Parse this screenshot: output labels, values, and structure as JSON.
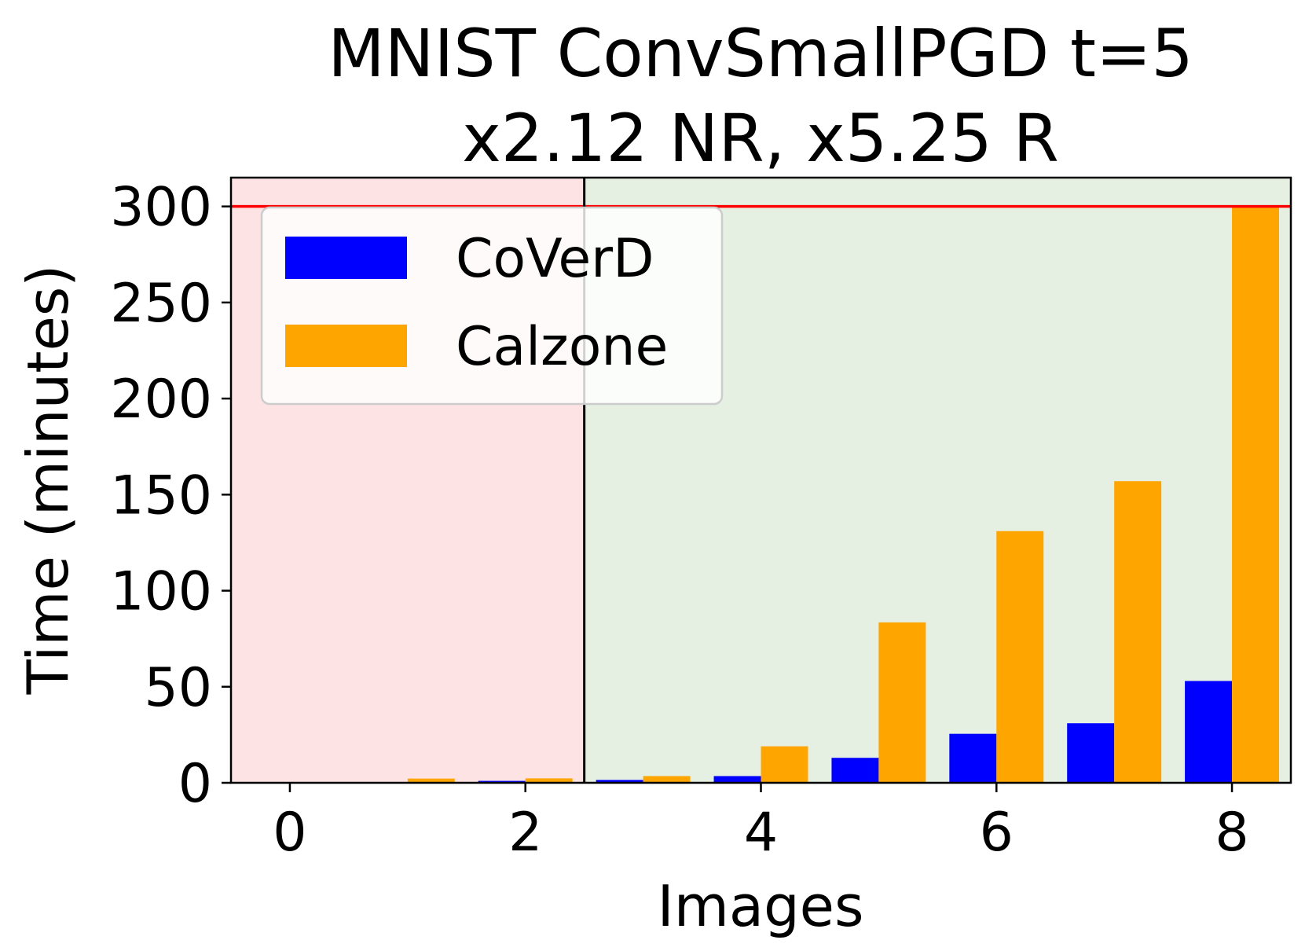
{
  "chart_data": {
    "type": "bar",
    "title": [
      "MNIST ConvSmallPGD t=5",
      "x2.12 NR, x5.25 R"
    ],
    "xlabel": "Images",
    "ylabel": "Time (minutes)",
    "x": [
      0,
      1,
      2,
      3,
      4,
      5,
      6,
      7,
      8
    ],
    "xlim": [
      -0.5,
      8.5
    ],
    "ylim": [
      0,
      315
    ],
    "xticks": [
      0,
      2,
      4,
      6,
      8
    ],
    "yticks": [
      0,
      50,
      100,
      150,
      200,
      250,
      300
    ],
    "timeout_line": 300,
    "divider_x": 2.5,
    "regions": [
      {
        "from": -0.5,
        "to": 2.5,
        "color": "#fde3e3"
      },
      {
        "from": 2.5,
        "to": 8.5,
        "color": "#e5f0e3"
      }
    ],
    "series": [
      {
        "name": "CoVerD",
        "color": "#0000ff",
        "values": [
          0.2,
          0.3,
          1.0,
          1.5,
          3.5,
          13,
          25.5,
          31,
          53
        ]
      },
      {
        "name": "Calzone",
        "color": "#ffa500",
        "values": [
          0.3,
          2.2,
          2.3,
          3.5,
          19,
          83.5,
          131,
          157,
          300
        ]
      }
    ],
    "legend_position": "upper-left",
    "grid": false
  }
}
